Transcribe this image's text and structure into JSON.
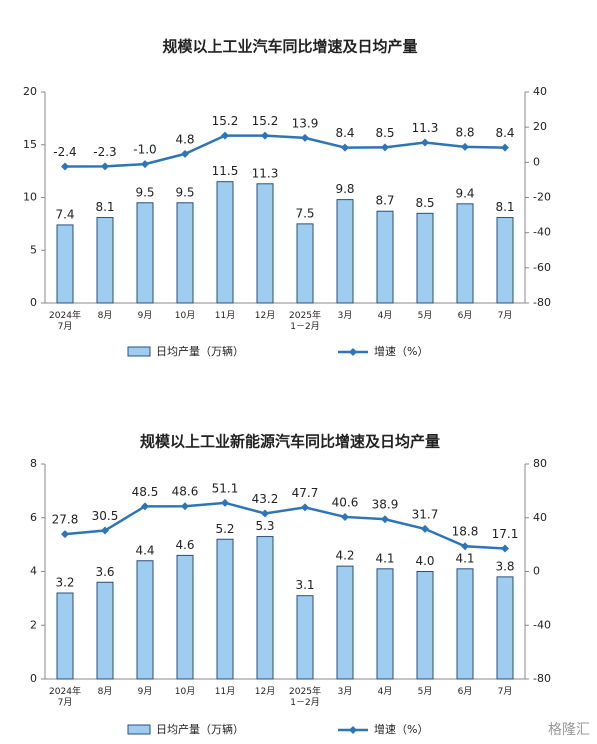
{
  "chart_data": [
    {
      "type": "bar-line",
      "title": "规模以上工业汽车同比增速及日均产量",
      "categories": [
        "2024年\n7月",
        "8月",
        "9月",
        "10月",
        "11月",
        "12月",
        "2025年\n1－2月",
        "3月",
        "4月",
        "5月",
        "6月",
        "7月"
      ],
      "series": [
        {
          "name": "日均产量（万辆）",
          "type": "bar",
          "color": "#9fcdf0",
          "values": [
            7.4,
            8.1,
            9.5,
            9.5,
            11.5,
            11.3,
            7.5,
            9.8,
            8.7,
            8.5,
            9.4,
            8.1
          ]
        },
        {
          "name": "增速（%）",
          "type": "line",
          "axis": "y2",
          "color": "#2e75b6",
          "values": [
            -2.4,
            -2.3,
            -1.0,
            4.8,
            15.2,
            15.2,
            13.9,
            8.4,
            8.5,
            11.3,
            8.8,
            8.4
          ],
          "value_labels": [
            "-2.4",
            "-2.3",
            "-1.0",
            "4.8",
            "15.2",
            "15.2",
            "13.9",
            "8.4",
            "8.5",
            "11.3",
            "8.8",
            "8.4"
          ]
        }
      ],
      "ylim": [
        0,
        20
      ],
      "yticks": [
        0,
        5,
        10,
        15,
        20
      ],
      "y2lim": [
        -80,
        40
      ],
      "y2ticks": [
        -80,
        -60,
        -40,
        -20,
        0,
        20,
        40
      ]
    },
    {
      "type": "bar-line",
      "title": "规模以上工业新能源汽车同比增速及日均产量",
      "categories": [
        "2024年\n7月",
        "8月",
        "9月",
        "10月",
        "11月",
        "12月",
        "2025年\n1－2月",
        "3月",
        "4月",
        "5月",
        "6月",
        "7月"
      ],
      "series": [
        {
          "name": "日均产量（万辆）",
          "type": "bar",
          "color": "#9fcdf0",
          "values": [
            3.2,
            3.6,
            4.4,
            4.6,
            5.2,
            5.3,
            3.1,
            4.2,
            4.1,
            4.0,
            4.1,
            3.8
          ],
          "value_labels": [
            "3.2",
            "3.6",
            "4.4",
            "4.6",
            "5.2",
            "5.3",
            "3.1",
            "4.2",
            "4.1",
            "4.0",
            "4.1",
            "3.8"
          ]
        },
        {
          "name": "增速（%）",
          "type": "line",
          "axis": "y2",
          "color": "#2e75b6",
          "values": [
            27.8,
            30.5,
            48.5,
            48.6,
            51.1,
            43.2,
            47.7,
            40.6,
            38.9,
            31.7,
            18.8,
            17.1
          ]
        }
      ],
      "ylim": [
        0,
        8
      ],
      "yticks": [
        0,
        2,
        4,
        6,
        8
      ],
      "y2lim": [
        -80,
        80
      ],
      "y2ticks": [
        -80,
        -40,
        0,
        40,
        80
      ]
    }
  ],
  "watermark": "格隆汇"
}
